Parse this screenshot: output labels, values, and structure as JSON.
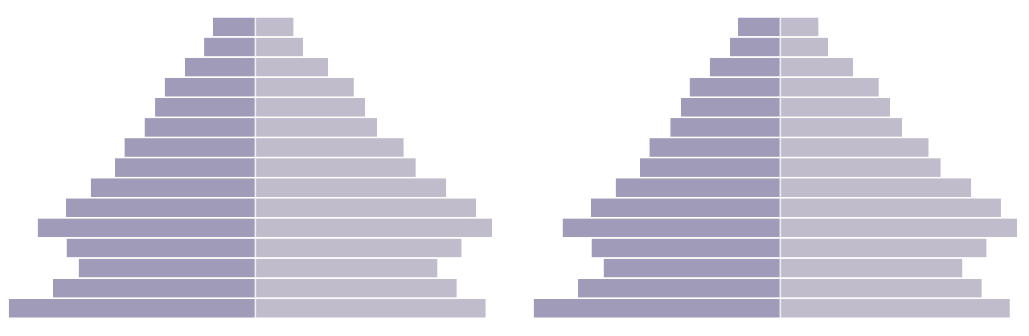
{
  "chart_data": [
    {
      "type": "bar",
      "orientation": "horizontal-mirrored",
      "title": "",
      "xlabel": "",
      "ylabel": "",
      "categories": [
        "",
        "",
        "",
        "",
        "",
        "",
        "",
        "",
        "",
        "",
        "",
        "",
        "",
        "",
        ""
      ],
      "series": [
        {
          "side": "left",
          "color": "#a09bb8",
          "values": [
            52,
            63,
            87,
            112,
            124,
            137,
            162,
            174,
            204,
            235,
            270,
            234,
            219,
            251,
            306
          ]
        },
        {
          "side": "right",
          "color": "#c0bccc",
          "values": [
            47,
            59,
            90,
            122,
            136,
            151,
            184,
            199,
            237,
            274,
            294,
            256,
            226,
            250,
            286
          ]
        }
      ],
      "xlim": [
        0,
        310
      ],
      "grid": false,
      "legend": "none"
    },
    {
      "type": "bar",
      "orientation": "horizontal-mirrored",
      "title": "",
      "xlabel": "",
      "ylabel": "",
      "categories": [
        "",
        "",
        "",
        "",
        "",
        "",
        "",
        "",
        "",
        "",
        "",
        "",
        "",
        "",
        ""
      ],
      "series": [
        {
          "side": "left",
          "color": "#a09bb8",
          "values": [
            52,
            62,
            87,
            112,
            123,
            136,
            162,
            174,
            204,
            235,
            270,
            234,
            219,
            251,
            306
          ]
        },
        {
          "side": "right",
          "color": "#c0bccc",
          "values": [
            47,
            59,
            90,
            122,
            136,
            151,
            184,
            199,
            237,
            274,
            294,
            256,
            226,
            250,
            285
          ]
        }
      ],
      "xlim": [
        0,
        310
      ],
      "grid": false,
      "legend": "none"
    }
  ]
}
